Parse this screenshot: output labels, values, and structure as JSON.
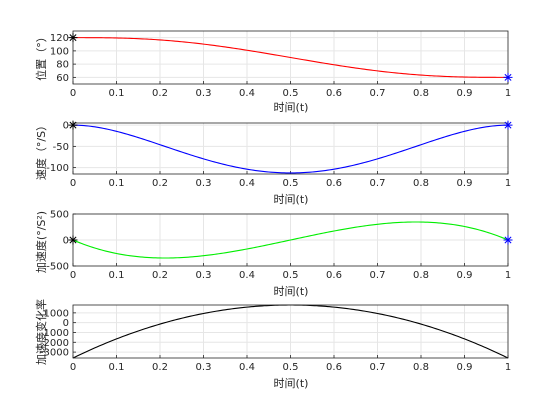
{
  "chart_data": [
    {
      "type": "line",
      "ylabel": "位置（°）",
      "xlabel": "时间(t)",
      "xlim": [
        0,
        1
      ],
      "ylim": [
        50,
        130
      ],
      "xticks": [
        "0",
        "0.1",
        "0.2",
        "0.3",
        "0.4",
        "0.5",
        "0.6",
        "0.7",
        "0.8",
        "0.9",
        "1"
      ],
      "yticks": [
        "60",
        "80",
        "100",
        "120"
      ],
      "grid": true,
      "color": "#ff0000",
      "formula": "quintic",
      "params": {
        "p0": 120,
        "p1": 60
      },
      "series": [
        {
          "x": [
            0,
            0.1,
            0.2,
            0.3,
            0.4,
            0.5,
            0.6,
            0.7,
            0.8,
            0.9,
            1
          ],
          "values": [
            120,
            119.5,
            116.5,
            110.1,
            100.5,
            90,
            79.5,
            69.9,
            63.5,
            60.5,
            60
          ]
        }
      ],
      "start_marker": {
        "x": 0,
        "y": 120,
        "symbol": "*",
        "color": "#000000"
      },
      "end_marker": {
        "x": 1,
        "y": 60,
        "symbol": "*",
        "color": "#0000ff"
      }
    },
    {
      "type": "line",
      "ylabel": "速度（°/S）",
      "xlabel": "时间(t)",
      "xlim": [
        0,
        1
      ],
      "ylim": [
        -115,
        5
      ],
      "xticks": [
        "0",
        "0.1",
        "0.2",
        "0.3",
        "0.4",
        "0.5",
        "0.6",
        "0.7",
        "0.8",
        "0.9",
        "1"
      ],
      "yticks": [
        "-100",
        "-50",
        "0"
      ],
      "grid": true,
      "color": "#0000ff",
      "formula": "quintic_d1",
      "params": {
        "p0": 120,
        "p1": 60
      },
      "series": [
        {
          "x": [
            0,
            0.1,
            0.2,
            0.3,
            0.4,
            0.5,
            0.6,
            0.7,
            0.8,
            0.9,
            1
          ],
          "values": [
            0,
            -14.6,
            -46.1,
            -79.4,
            -103.7,
            -112.5,
            -103.7,
            -79.4,
            -46.1,
            -14.6,
            0
          ]
        }
      ],
      "start_marker": {
        "x": 0,
        "y": 0,
        "symbol": "*",
        "color": "#000000"
      },
      "end_marker": {
        "x": 1,
        "y": 0,
        "symbol": "*",
        "color": "#0000ff"
      }
    },
    {
      "type": "line",
      "ylabel": "加速度(°/S²)",
      "xlabel": "时间(t)",
      "xlim": [
        0,
        1
      ],
      "ylim": [
        -500,
        500
      ],
      "xticks": [
        "0",
        "0.1",
        "0.2",
        "0.3",
        "0.4",
        "0.5",
        "0.6",
        "0.7",
        "0.8",
        "0.9",
        "1"
      ],
      "yticks": [
        "-500",
        "0",
        "500"
      ],
      "grid": true,
      "color": "#00ee00",
      "formula": "quintic_d2",
      "params": {
        "p0": 120,
        "p1": 60
      },
      "series": [
        {
          "x": [
            0,
            0.1,
            0.2,
            0.3,
            0.4,
            0.5,
            0.6,
            0.7,
            0.8,
            0.9,
            1
          ],
          "values": [
            0,
            -259.2,
            -345.6,
            -302.4,
            -172.8,
            0,
            172.8,
            302.4,
            345.6,
            259.2,
            0
          ]
        }
      ],
      "start_marker": {
        "x": 0,
        "y": 0,
        "symbol": "*",
        "color": "#000000"
      },
      "end_marker": {
        "x": 1,
        "y": 0,
        "symbol": "*",
        "color": "#0000ff"
      }
    },
    {
      "type": "line",
      "ylabel": "加速度变化率",
      "xlabel": "时间(t)",
      "xlim": [
        0,
        1
      ],
      "ylim": [
        -3600,
        1800
      ],
      "xticks": [
        "0",
        "0.1",
        "0.2",
        "0.3",
        "0.4",
        "0.5",
        "0.6",
        "0.7",
        "0.8",
        "0.9",
        "1"
      ],
      "yticks": [
        "-3000",
        "-2000",
        "-1000",
        "0",
        "1000"
      ],
      "grid": true,
      "color": "#000000",
      "formula": "quintic_d3",
      "params": {
        "p0": 120,
        "p1": 60
      },
      "series": [
        {
          "x": [
            0,
            0.1,
            0.2,
            0.3,
            0.4,
            0.5,
            0.6,
            0.7,
            0.8,
            0.9,
            1
          ],
          "values": [
            -3600,
            -1872,
            -576,
            288,
            1368,
            1800,
            1368,
            288,
            -576,
            -1872,
            -3600
          ]
        }
      ],
      "start_marker": null,
      "end_marker": null
    }
  ]
}
